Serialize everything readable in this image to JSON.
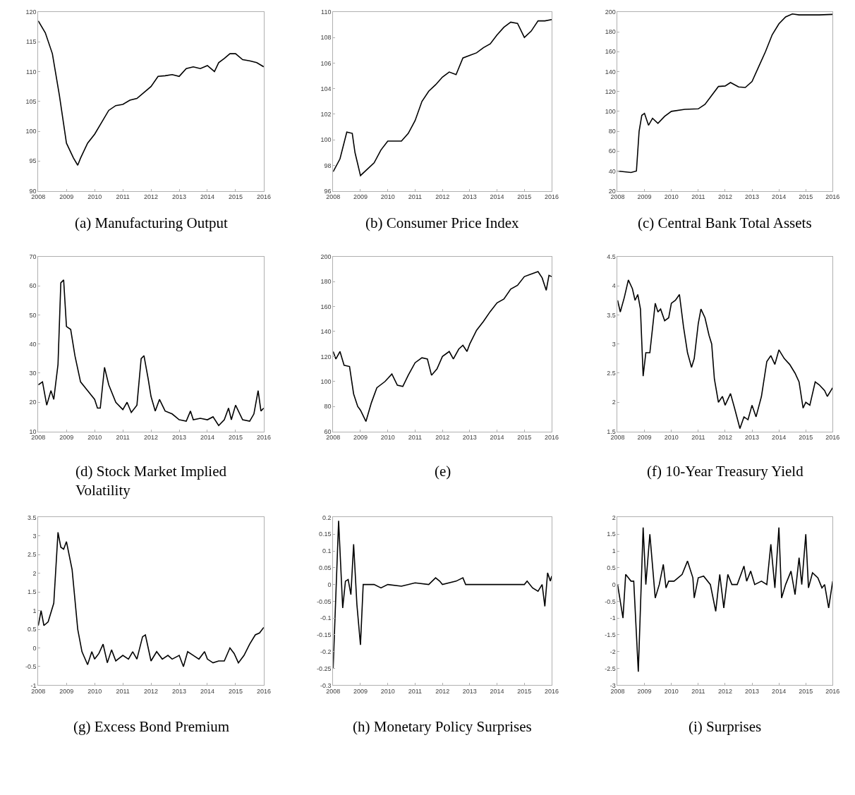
{
  "chart_data": [
    {
      "type": "line",
      "title": "(a) Manufacturing Output",
      "color": "#000000",
      "grid": false,
      "xlim": [
        2008,
        2016
      ],
      "xticks": [
        2008,
        2009,
        2010,
        2011,
        2012,
        2013,
        2014,
        2015,
        2016
      ],
      "ylim": [
        90,
        120
      ],
      "yticks": [
        90,
        95,
        100,
        105,
        110,
        115,
        120
      ],
      "x": [
        2008,
        2008.25,
        2008.5,
        2008.75,
        2009,
        2009.25,
        2009.4,
        2009.5,
        2009.75,
        2010,
        2010.25,
        2010.5,
        2010.75,
        2011,
        2011.25,
        2011.5,
        2011.75,
        2012,
        2012.25,
        2012.5,
        2012.75,
        2013,
        2013.25,
        2013.5,
        2013.75,
        2014,
        2014.25,
        2014.4,
        2014.6,
        2014.8,
        2015,
        2015.25,
        2015.5,
        2015.75,
        2016
      ],
      "values": [
        118.5,
        116.5,
        113,
        106,
        98,
        95.5,
        94.3,
        95.5,
        98,
        99.5,
        101.5,
        103.5,
        104.3,
        104.5,
        105.2,
        105.5,
        106.5,
        107.5,
        109.2,
        109.3,
        109.5,
        109.2,
        110.5,
        110.8,
        110.5,
        111,
        110,
        111.5,
        112.2,
        113,
        113,
        112,
        111.8,
        111.5,
        110.8
      ]
    },
    {
      "type": "line",
      "title": "(b) Consumer Price Index",
      "color": "#000000",
      "grid": false,
      "xlim": [
        2008,
        2016
      ],
      "xticks": [
        2008,
        2009,
        2010,
        2011,
        2012,
        2013,
        2014,
        2015,
        2016
      ],
      "ylim": [
        96,
        110
      ],
      "yticks": [
        96,
        98,
        100,
        102,
        104,
        106,
        108,
        110
      ],
      "x": [
        2008,
        2008.25,
        2008.5,
        2008.7,
        2008.8,
        2009,
        2009.25,
        2009.5,
        2009.75,
        2010,
        2010.25,
        2010.5,
        2010.75,
        2011,
        2011.25,
        2011.5,
        2011.75,
        2012,
        2012.25,
        2012.5,
        2012.75,
        2013,
        2013.25,
        2013.5,
        2013.75,
        2014,
        2014.25,
        2014.5,
        2014.75,
        2015,
        2015.25,
        2015.5,
        2015.75,
        2016
      ],
      "values": [
        97.5,
        98.5,
        100.6,
        100.5,
        99,
        97.2,
        97.7,
        98.2,
        99.2,
        99.9,
        99.9,
        99.9,
        100.5,
        101.5,
        103,
        103.8,
        104.3,
        104.9,
        105.3,
        105.1,
        106.4,
        106.6,
        106.8,
        107.2,
        107.5,
        108.2,
        108.8,
        109.2,
        109.1,
        108,
        108.5,
        109.3,
        109.3,
        109.4
      ]
    },
    {
      "type": "line",
      "title": "(c) Central Bank Total Assets",
      "color": "#000000",
      "grid": false,
      "xlim": [
        2008,
        2016
      ],
      "xticks": [
        2008,
        2009,
        2010,
        2011,
        2012,
        2013,
        2014,
        2015,
        2016
      ],
      "ylim": [
        20,
        200
      ],
      "yticks": [
        20,
        40,
        60,
        80,
        100,
        120,
        140,
        160,
        180,
        200
      ],
      "x": [
        2008,
        2008.5,
        2008.7,
        2008.8,
        2008.9,
        2009,
        2009.15,
        2009.3,
        2009.5,
        2009.75,
        2010,
        2010.5,
        2011,
        2011.25,
        2011.5,
        2011.75,
        2012,
        2012.2,
        2012.5,
        2012.75,
        2013,
        2013.25,
        2013.5,
        2013.75,
        2014,
        2014.25,
        2014.5,
        2014.75,
        2015,
        2015.5,
        2016
      ],
      "values": [
        40,
        38.5,
        40,
        80,
        96,
        98,
        86,
        93,
        88,
        95,
        100,
        102,
        102.5,
        107,
        116,
        125,
        125.5,
        129,
        124.5,
        124,
        130,
        145,
        160,
        177,
        188,
        195,
        198,
        197,
        197,
        197,
        197.5
      ]
    },
    {
      "type": "line",
      "title": "(d) Stock Market Implied Volatility",
      "color": "#000000",
      "grid": false,
      "xlim": [
        2008,
        2016
      ],
      "xticks": [
        2008,
        2009,
        2010,
        2011,
        2012,
        2013,
        2014,
        2015,
        2016
      ],
      "ylim": [
        10,
        70
      ],
      "yticks": [
        10,
        20,
        30,
        40,
        50,
        60,
        70
      ],
      "x": [
        2008,
        2008.15,
        2008.3,
        2008.45,
        2008.55,
        2008.7,
        2008.8,
        2008.9,
        2009,
        2009.15,
        2009.3,
        2009.5,
        2009.75,
        2010,
        2010.1,
        2010.2,
        2010.35,
        2010.5,
        2010.75,
        2011,
        2011.15,
        2011.3,
        2011.5,
        2011.65,
        2011.75,
        2011.9,
        2012,
        2012.15,
        2012.3,
        2012.5,
        2012.75,
        2013,
        2013.25,
        2013.4,
        2013.5,
        2013.75,
        2014,
        2014.2,
        2014.4,
        2014.6,
        2014.75,
        2014.85,
        2015,
        2015.25,
        2015.5,
        2015.65,
        2015.8,
        2015.9,
        2016
      ],
      "values": [
        26,
        27,
        19,
        24,
        21,
        33,
        61,
        62,
        46,
        45,
        36,
        27,
        24,
        21,
        18,
        18,
        32,
        26,
        20,
        17.5,
        20,
        16.5,
        19,
        35,
        36,
        28,
        22,
        17,
        21,
        17,
        16,
        14,
        13.5,
        17,
        14,
        14.5,
        14,
        15,
        12,
        14,
        18,
        14,
        19,
        14,
        13.5,
        16,
        24,
        17,
        18
      ]
    },
    {
      "type": "line",
      "title": "(e)",
      "color": "#000000",
      "grid": false,
      "xlim": [
        2008,
        2016
      ],
      "xticks": [
        2008,
        2009,
        2010,
        2011,
        2012,
        2013,
        2014,
        2015,
        2016
      ],
      "ylim": [
        60,
        200
      ],
      "yticks": [
        60,
        80,
        100,
        120,
        140,
        160,
        180,
        200
      ],
      "x": [
        2008,
        2008.1,
        2008.25,
        2008.4,
        2008.6,
        2008.75,
        2008.9,
        2009,
        2009.2,
        2009.4,
        2009.6,
        2009.9,
        2010.15,
        2010.35,
        2010.55,
        2010.75,
        2011,
        2011.25,
        2011.45,
        2011.6,
        2011.8,
        2012,
        2012.25,
        2012.4,
        2012.6,
        2012.75,
        2012.9,
        2013,
        2013.25,
        2013.5,
        2013.75,
        2014,
        2014.25,
        2014.5,
        2014.75,
        2015,
        2015.25,
        2015.5,
        2015.65,
        2015.8,
        2015.9,
        2016
      ],
      "values": [
        124,
        118,
        124,
        113,
        112,
        90,
        80,
        77,
        68,
        83,
        95,
        100,
        106,
        97,
        96,
        105,
        115,
        119,
        118,
        105,
        110,
        120,
        124,
        118,
        126,
        129,
        124,
        130,
        141,
        148,
        156,
        163,
        166,
        174,
        177,
        184,
        186,
        188,
        183,
        173,
        185,
        184
      ]
    },
    {
      "type": "line",
      "title": "(f) 10-Year Treasury Yield",
      "color": "#000000",
      "grid": false,
      "xlim": [
        2008,
        2016
      ],
      "xticks": [
        2008,
        2009,
        2010,
        2011,
        2012,
        2013,
        2014,
        2015,
        2016
      ],
      "ylim": [
        1.5,
        4.5
      ],
      "yticks": [
        1.5,
        2,
        2.5,
        3,
        3.5,
        4,
        4.5
      ],
      "x": [
        2008,
        2008.1,
        2008.25,
        2008.4,
        2008.55,
        2008.65,
        2008.75,
        2008.85,
        2008.95,
        2009.05,
        2009.2,
        2009.4,
        2009.5,
        2009.6,
        2009.75,
        2009.9,
        2010,
        2010.15,
        2010.3,
        2010.45,
        2010.6,
        2010.75,
        2010.85,
        2011,
        2011.1,
        2011.25,
        2011.4,
        2011.5,
        2011.6,
        2011.75,
        2011.9,
        2012,
        2012.2,
        2012.35,
        2012.55,
        2012.7,
        2012.85,
        2013,
        2013.15,
        2013.35,
        2013.55,
        2013.7,
        2013.85,
        2014,
        2014.2,
        2014.4,
        2014.6,
        2014.75,
        2014.9,
        2015,
        2015.15,
        2015.35,
        2015.5,
        2015.7,
        2015.8,
        2016
      ],
      "values": [
        3.75,
        3.55,
        3.8,
        4.1,
        3.95,
        3.75,
        3.85,
        3.6,
        2.45,
        2.85,
        2.85,
        3.7,
        3.55,
        3.6,
        3.4,
        3.45,
        3.7,
        3.75,
        3.85,
        3.3,
        2.85,
        2.6,
        2.75,
        3.35,
        3.6,
        3.45,
        3.15,
        3,
        2.4,
        2,
        2.1,
        1.95,
        2.15,
        1.9,
        1.55,
        1.75,
        1.7,
        1.95,
        1.75,
        2.1,
        2.7,
        2.8,
        2.65,
        2.9,
        2.75,
        2.65,
        2.5,
        2.35,
        1.9,
        2,
        1.95,
        2.35,
        2.3,
        2.2,
        2.1,
        2.25
      ]
    },
    {
      "type": "line",
      "title": "(g) Excess Bond Premium",
      "color": "#000000",
      "grid": false,
      "xlim": [
        2008,
        2016
      ],
      "xticks": [
        2008,
        2009,
        2010,
        2011,
        2012,
        2013,
        2014,
        2015,
        2016
      ],
      "ylim": [
        -1,
        3.5
      ],
      "yticks": [
        -1,
        -0.5,
        0,
        0.5,
        1,
        1.5,
        2,
        2.5,
        3,
        3.5
      ],
      "x": [
        2008,
        2008.1,
        2008.2,
        2008.35,
        2008.55,
        2008.7,
        2008.8,
        2008.9,
        2009,
        2009.2,
        2009.4,
        2009.55,
        2009.75,
        2009.9,
        2010,
        2010.15,
        2010.3,
        2010.45,
        2010.6,
        2010.75,
        2011,
        2011.2,
        2011.35,
        2011.5,
        2011.7,
        2011.8,
        2012,
        2012.2,
        2012.4,
        2012.6,
        2012.75,
        2013,
        2013.15,
        2013.3,
        2013.5,
        2013.7,
        2013.9,
        2014,
        2014.2,
        2014.4,
        2014.6,
        2014.8,
        2014.95,
        2015.1,
        2015.3,
        2015.5,
        2015.7,
        2015.85,
        2016
      ],
      "values": [
        0.6,
        1.0,
        0.6,
        0.7,
        1.2,
        3.1,
        2.7,
        2.65,
        2.85,
        2.1,
        0.5,
        -0.1,
        -0.45,
        -0.1,
        -0.3,
        -0.15,
        0.1,
        -0.4,
        -0.05,
        -0.35,
        -0.2,
        -0.3,
        -0.1,
        -0.3,
        0.3,
        0.35,
        -0.35,
        -0.1,
        -0.3,
        -0.2,
        -0.3,
        -0.2,
        -0.5,
        -0.1,
        -0.2,
        -0.3,
        -0.1,
        -0.3,
        -0.4,
        -0.35,
        -0.35,
        0,
        -0.15,
        -0.4,
        -0.2,
        0.1,
        0.35,
        0.4,
        0.55
      ]
    },
    {
      "type": "line",
      "title": "(h) Monetary Policy Surprises",
      "color": "#000000",
      "grid": false,
      "xlim": [
        2008,
        2016
      ],
      "xticks": [
        2008,
        2009,
        2010,
        2011,
        2012,
        2013,
        2014,
        2015,
        2016
      ],
      "ylim": [
        -0.3,
        0.2
      ],
      "yticks": [
        -0.3,
        -0.25,
        -0.2,
        -0.15,
        -0.1,
        -0.05,
        0,
        0.05,
        0.1,
        0.15,
        0.2
      ],
      "x": [
        2008,
        2008.2,
        2008.35,
        2008.45,
        2008.55,
        2008.65,
        2008.75,
        2008.87,
        2009,
        2009.1,
        2009.5,
        2009.75,
        2010,
        2010.5,
        2011,
        2011.5,
        2011.75,
        2011.9,
        2012,
        2012.5,
        2012.75,
        2012.85,
        2013,
        2014,
        2015,
        2015.1,
        2015.3,
        2015.5,
        2015.65,
        2015.75,
        2015.85,
        2015.95,
        2016
      ],
      "values": [
        -0.25,
        0.19,
        -0.07,
        0.01,
        0.015,
        -0.03,
        0.12,
        -0.06,
        -0.18,
        0,
        0,
        -0.01,
        0,
        -0.005,
        0.005,
        0,
        0.02,
        0.01,
        0,
        0.01,
        0.02,
        0,
        0,
        0,
        0,
        0.01,
        -0.01,
        -0.02,
        0,
        -0.065,
        0.035,
        0.01,
        0.025
      ]
    },
    {
      "type": "line",
      "title": "(i) Surprises",
      "color": "#000000",
      "grid": false,
      "xlim": [
        2008,
        2016
      ],
      "xticks": [
        2008,
        2009,
        2010,
        2011,
        2012,
        2013,
        2014,
        2015,
        2016
      ],
      "ylim": [
        -3,
        2
      ],
      "yticks": [
        -3,
        -2.5,
        -2,
        -1.5,
        -1,
        -0.5,
        0,
        0.5,
        1,
        1.5,
        2
      ],
      "x": [
        2008,
        2008.2,
        2008.3,
        2008.5,
        2008.6,
        2008.77,
        2008.95,
        2009.05,
        2009.2,
        2009.4,
        2009.55,
        2009.7,
        2009.8,
        2009.9,
        2010.1,
        2010.4,
        2010.6,
        2010.8,
        2010.85,
        2011,
        2011.2,
        2011.45,
        2011.65,
        2011.8,
        2011.95,
        2012.1,
        2012.25,
        2012.45,
        2012.7,
        2012.8,
        2012.95,
        2013.1,
        2013.35,
        2013.55,
        2013.7,
        2013.85,
        2014,
        2014.1,
        2014.25,
        2014.45,
        2014.6,
        2014.75,
        2014.85,
        2015,
        2015.1,
        2015.25,
        2015.45,
        2015.6,
        2015.7,
        2015.85,
        2016
      ],
      "values": [
        0,
        -1.0,
        0.3,
        0.1,
        0.1,
        -2.6,
        1.7,
        0,
        1.5,
        -0.4,
        0,
        0.6,
        -0.1,
        0.1,
        0.1,
        0.3,
        0.7,
        0.2,
        -0.4,
        0.2,
        0.25,
        0,
        -0.8,
        0.3,
        -0.7,
        0.3,
        0,
        0,
        0.55,
        0.1,
        0.4,
        0,
        0.1,
        0,
        1.2,
        -0.1,
        1.7,
        -0.4,
        0,
        0.4,
        -0.3,
        0.8,
        0,
        1.5,
        -0.1,
        0.35,
        0.2,
        -0.1,
        0,
        -0.7,
        0.1
      ]
    }
  ]
}
